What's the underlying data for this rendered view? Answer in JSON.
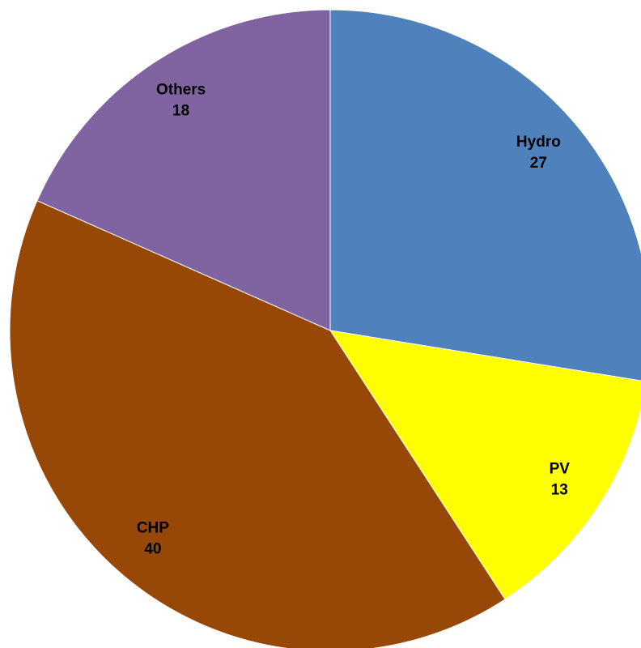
{
  "chart_data": {
    "type": "pie",
    "categories": [
      "Hydro",
      "PV",
      "CHP",
      "Others"
    ],
    "values": [
      27,
      13,
      40,
      18
    ],
    "colors": [
      "#4f81bd",
      "#ffff00",
      "#974706",
      "#8064a2"
    ],
    "start_angle": "top",
    "direction": "clockwise"
  }
}
